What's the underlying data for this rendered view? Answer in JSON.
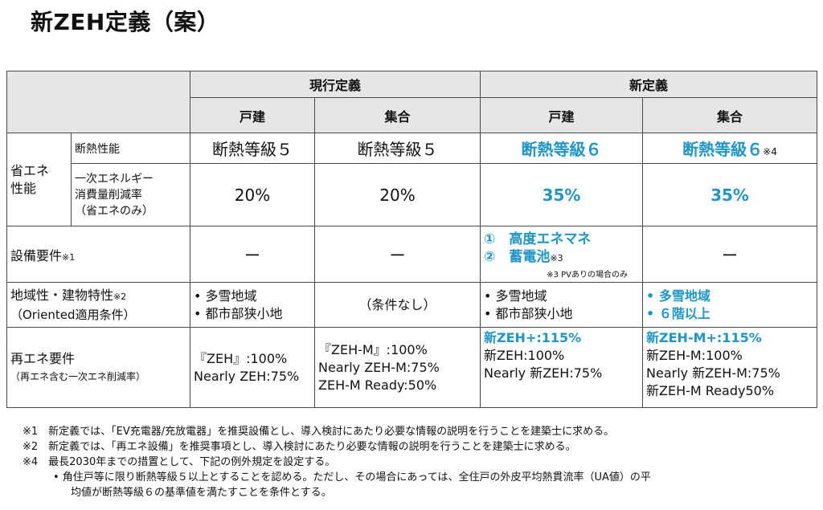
{
  "title": "新ZEH定義（案）",
  "table": {
    "groups": {
      "current": "現行定義",
      "new": "新定義"
    },
    "subheaders": {
      "detached": "戸建",
      "collective": "集合"
    },
    "rows": {
      "energy": {
        "label": "省エネ性能",
        "insulation": {
          "label": "断熱性能",
          "current_detached": "断熱等級５",
          "current_collective": "断熱等級５",
          "new_detached": "断熱等級６",
          "new_collective": "断熱等級６",
          "new_collective_note": "※4"
        },
        "reduction": {
          "label_l1": "一次エネルギー",
          "label_l2": "消費量削減率",
          "label_l3": "（省エネのみ）",
          "current_detached": "20%",
          "current_collective": "20%",
          "new_detached": "35%",
          "new_collective": "35%"
        }
      },
      "equipment": {
        "label": "設備要件",
        "note": "※1",
        "current_detached": "ー",
        "current_collective": "ー",
        "new_item1": "①　高度エネマネ",
        "new_item2": "②　蓄電池",
        "new_item2_note": "※3",
        "new_pv_note": "※3 PVありの場合のみ",
        "new_collective": "ー"
      },
      "regional": {
        "label": "地域性・建物特性",
        "note": "※2",
        "label_l2": "（Oriented適用条件）",
        "current_detached_1": "•  多雪地域",
        "current_detached_2": "•  都市部狭小地",
        "current_collective": "（条件なし）",
        "new_detached_1": "•  多雪地域",
        "new_detached_2": "•  都市部狭小地",
        "new_collective_1": "•  多雪地域",
        "new_collective_2": "•  ６階以上"
      },
      "renewable": {
        "label": "再エネ要件",
        "label_l2": "（再エネ含む一次エネ削減率）",
        "current_detached_1": "『ZEH』:100%",
        "current_detached_2": "Nearly ZEH:75%",
        "current_collective_1": "『ZEH-M』:100%",
        "current_collective_2": "Nearly ZEH-M:75%",
        "current_collective_3": "ZEH-M Ready:50%",
        "new_detached_1": "新ZEH+:115%",
        "new_detached_2": "新ZEH:100%",
        "new_detached_3": "Nearly 新ZEH:75%",
        "new_collective_1": "新ZEH-M+:115%",
        "new_collective_2": "新ZEH-M:100%",
        "new_collective_3": "Nearly 新ZEH-M:75%",
        "new_collective_4": "新ZEH-M Ready50%"
      }
    }
  },
  "footnotes": {
    "n1": "※1　新定義では、「EV充電器/充放電器」を推奨設備とし、導入検討にあたり必要な情報の説明を行うことを建築士に求める。",
    "n2": "※2　新定義では、「再エネ設備」を推奨事項とし、導入検討にあたり必要な情報の説明を行うことを建築士に求める。",
    "n4": "※4　最長2030年までの措置として、下記の例外規定を設定する。",
    "n4_bullet_l1": "•  角住戸等に限り断熱等級５以上とすることを認める。ただし、その場合にあっては、全住戸の外皮平均熱貫流率（UA値）の平",
    "n4_bullet_l2": "均値が断熱等級６の基準値を満たすことを条件とする。"
  },
  "colors": {
    "accent": "#1e96c8",
    "header_bg": "#e6e6e6"
  }
}
